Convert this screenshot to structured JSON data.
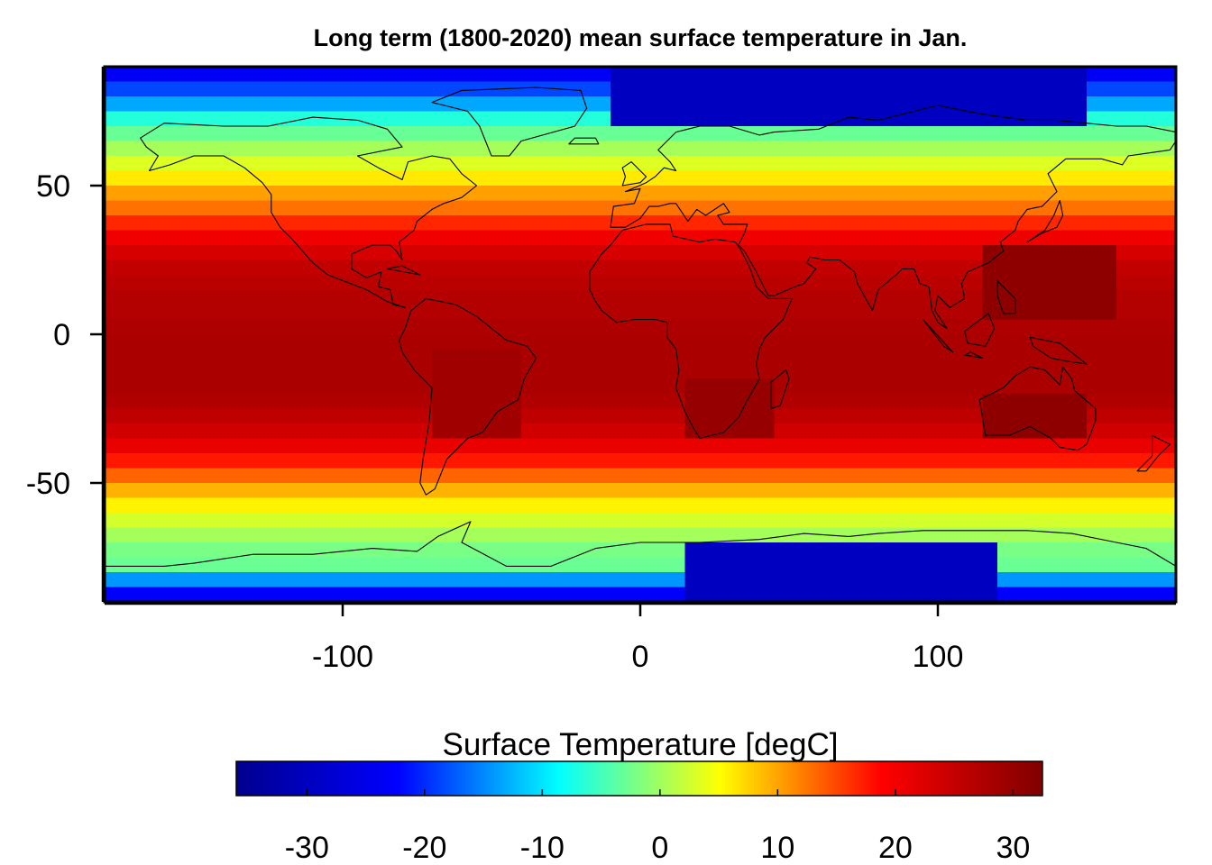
{
  "chart_data": {
    "type": "heatmap",
    "title": "Long term (1800-2020) mean surface temperature in Jan.",
    "xlabel": "",
    "ylabel": "",
    "xlim": [
      -180,
      180
    ],
    "ylim": [
      -90,
      90
    ],
    "x_ticks": [
      -100,
      0,
      100
    ],
    "y_ticks": [
      50,
      0,
      -50
    ],
    "colorbar": {
      "title": "Surface Temperature [degC]",
      "range": [
        -36,
        32.5
      ],
      "ticks": [
        -30,
        -20,
        -10,
        0,
        10,
        20,
        30
      ],
      "palette": [
        "#00008f",
        "#0000ff",
        "#00ffff",
        "#ffff00",
        "#ff0000",
        "#800000"
      ]
    },
    "latitudinal_profile": {
      "lat": [
        -90,
        -84,
        -78,
        -72,
        -66,
        -60,
        -54,
        -48,
        -42,
        -36,
        -30,
        -24,
        -18,
        -12,
        -6,
        0,
        6,
        12,
        18,
        24,
        30,
        36,
        42,
        48,
        54,
        60,
        66,
        72,
        78,
        84,
        90
      ],
      "temp": [
        -26,
        -18,
        -3,
        -2,
        1,
        4,
        8,
        13,
        18,
        22,
        25,
        27,
        28,
        28,
        28,
        28,
        27,
        27,
        26,
        25,
        22,
        18,
        13,
        10,
        5,
        2,
        -2,
        -6,
        -14,
        -20,
        -26
      ]
    },
    "regional_features": [
      {
        "region": "Antarctic interior",
        "lon": [
          15,
          120
        ],
        "lat": [
          -90,
          -72
        ],
        "temp": -30
      },
      {
        "region": "Arctic ocean",
        "lon": [
          -10,
          150
        ],
        "lat": [
          72,
          90
        ],
        "temp": -30
      },
      {
        "region": "Australia",
        "lon": [
          115,
          150
        ],
        "lat": [
          -35,
          -18
        ],
        "temp": 31
      },
      {
        "region": "Western Pacific warm pool",
        "lon": [
          115,
          160
        ],
        "lat": [
          5,
          30
        ],
        "temp": 31
      },
      {
        "region": "Southern Africa",
        "lon": [
          15,
          45
        ],
        "lat": [
          -35,
          -15
        ],
        "temp": 30
      },
      {
        "region": "South America",
        "lon": [
          -70,
          -40
        ],
        "lat": [
          -35,
          -5
        ],
        "temp": 29
      }
    ]
  }
}
